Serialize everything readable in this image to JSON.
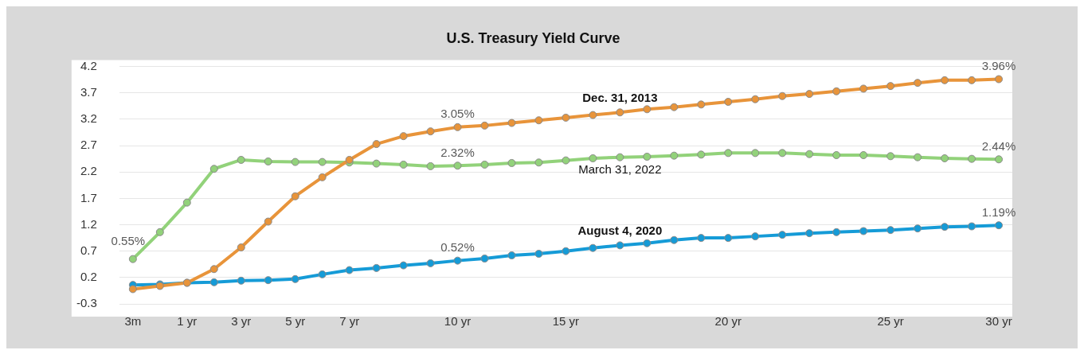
{
  "chart_data": {
    "type": "line",
    "title": "U.S. Treasury Yield Curve",
    "categories": [
      "3m",
      null,
      "1 yr",
      null,
      "3 yr",
      null,
      "5 yr",
      null,
      "7 yr",
      null,
      null,
      null,
      "10 yr",
      null,
      null,
      null,
      "15 yr",
      null,
      null,
      null,
      null,
      null,
      "20 yr",
      null,
      null,
      null,
      null,
      null,
      "25 yr",
      null,
      null,
      null,
      "30 yr"
    ],
    "series": [
      {
        "name": "Dec. 31, 2013",
        "color": "#e8943a",
        "values": [
          -0.02,
          0.04,
          0.1,
          0.36,
          0.77,
          1.26,
          1.74,
          2.1,
          2.43,
          2.73,
          2.88,
          2.97,
          3.05,
          3.08,
          3.13,
          3.18,
          3.23,
          3.28,
          3.33,
          3.39,
          3.43,
          3.48,
          3.53,
          3.58,
          3.64,
          3.68,
          3.73,
          3.78,
          3.83,
          3.89,
          3.94,
          3.94,
          3.96
        ],
        "value_labels": [
          null,
          null,
          null,
          null,
          null,
          null,
          null,
          null,
          null,
          null,
          null,
          null,
          "3.05%",
          null,
          null,
          null,
          null,
          null,
          null,
          null,
          null,
          null,
          null,
          null,
          null,
          null,
          null,
          null,
          null,
          null,
          null,
          null,
          "3.96%"
        ]
      },
      {
        "name": "March 31, 2022",
        "color": "#92d27a",
        "values": [
          0.55,
          1.06,
          1.62,
          2.26,
          2.43,
          2.4,
          2.39,
          2.39,
          2.38,
          2.36,
          2.34,
          2.31,
          2.32,
          2.34,
          2.37,
          2.38,
          2.42,
          2.46,
          2.48,
          2.49,
          2.51,
          2.53,
          2.56,
          2.56,
          2.56,
          2.54,
          2.52,
          2.52,
          2.5,
          2.48,
          2.46,
          2.45,
          2.44
        ],
        "value_labels": [
          "0.55%",
          null,
          null,
          null,
          null,
          null,
          null,
          null,
          null,
          null,
          null,
          null,
          "2.32%",
          null,
          null,
          null,
          null,
          null,
          null,
          null,
          null,
          null,
          null,
          null,
          null,
          null,
          null,
          null,
          null,
          null,
          null,
          null,
          "2.44%"
        ]
      },
      {
        "name": "August 4, 2020",
        "color": "#159bd7",
        "values": [
          0.06,
          0.07,
          0.1,
          0.11,
          0.14,
          0.15,
          0.17,
          0.26,
          0.34,
          0.38,
          0.43,
          0.47,
          0.52,
          0.56,
          0.62,
          0.65,
          0.7,
          0.76,
          0.81,
          0.85,
          0.91,
          0.95,
          0.95,
          0.98,
          1.01,
          1.04,
          1.06,
          1.08,
          1.1,
          1.13,
          1.16,
          1.17,
          1.19
        ],
        "value_labels": [
          null,
          null,
          null,
          null,
          null,
          null,
          null,
          null,
          null,
          null,
          null,
          null,
          "0.52%",
          null,
          null,
          null,
          null,
          null,
          null,
          null,
          null,
          null,
          null,
          null,
          null,
          null,
          null,
          null,
          null,
          null,
          null,
          null,
          "1.19%"
        ]
      }
    ],
    "ylim": [
      -0.3,
      4.2
    ],
    "yticks": [
      -0.3,
      0.2,
      0.7,
      1.2,
      1.7,
      2.2,
      2.7,
      3.2,
      3.7,
      4.2
    ],
    "grid": "y",
    "legend": false,
    "marker": "circle",
    "line_style": "solid"
  }
}
